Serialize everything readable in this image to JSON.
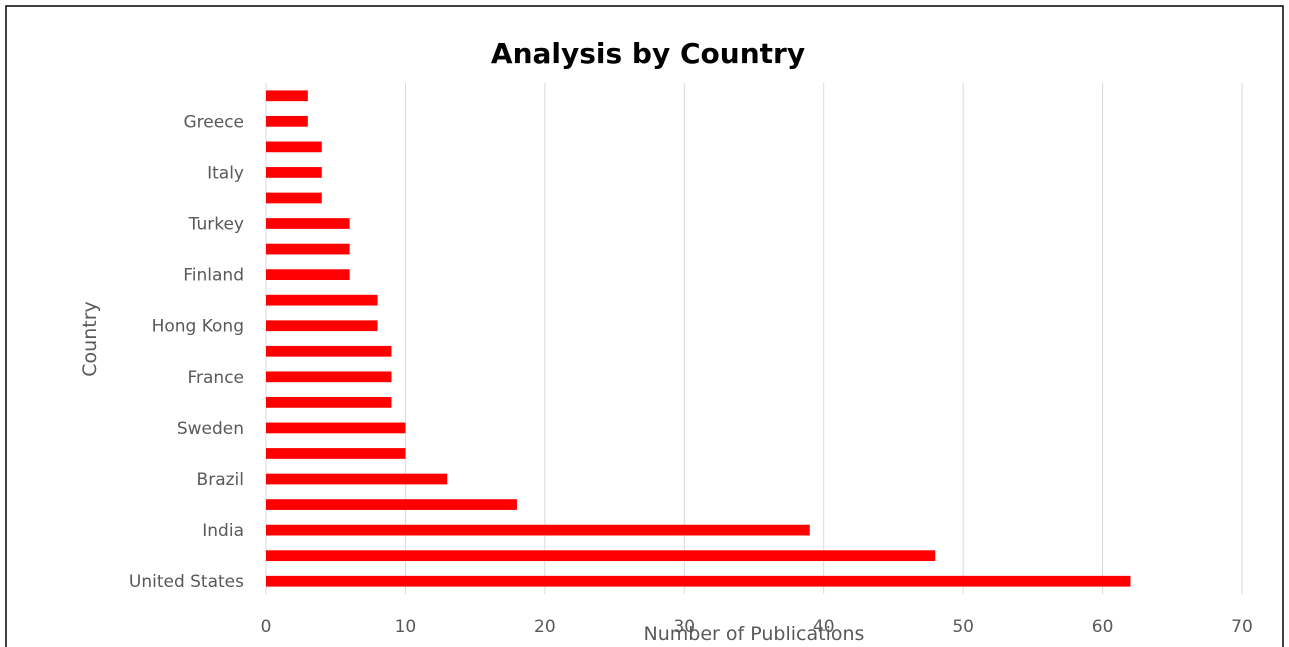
{
  "chart_data": {
    "type": "bar",
    "orientation": "horizontal",
    "title": "Analysis by Country",
    "xlabel": "Number of Publications",
    "ylabel": "Country",
    "xlim": [
      0,
      70
    ],
    "x_ticks": [
      "0",
      "10",
      "20",
      "30",
      "40",
      "50",
      "60",
      "70"
    ],
    "grid": "vertical",
    "legend": "none",
    "bar_color": "#ff0000",
    "categories": [
      "United States",
      "",
      "India",
      "",
      "Brazil",
      "",
      "Sweden",
      "",
      "France",
      "",
      "Hong Kong",
      "",
      "Finland",
      "",
      "Turkey",
      "",
      "Italy",
      "",
      "Greece",
      ""
    ],
    "values": [
      62,
      48,
      39,
      18,
      13,
      10,
      10,
      9,
      9,
      9,
      8,
      8,
      6,
      6,
      6,
      4,
      4,
      4,
      3,
      3
    ]
  }
}
